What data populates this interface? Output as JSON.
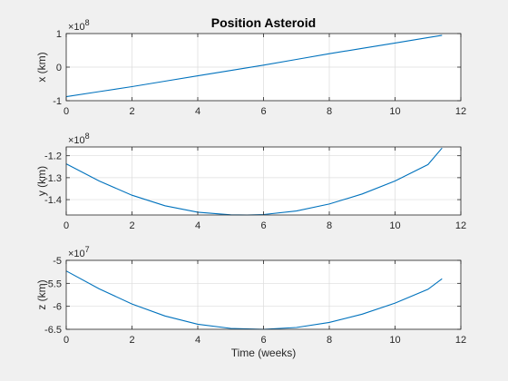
{
  "chart_data": [
    {
      "type": "line",
      "title": "Position Asteroid",
      "xlabel": "",
      "ylabel": "x (km)",
      "y_exponent": "8",
      "xlim": [
        0,
        12
      ],
      "ylim": [
        -1,
        1
      ],
      "xticks": [
        0,
        2,
        4,
        6,
        8,
        10,
        12
      ],
      "yticks": [
        -1,
        0,
        1
      ],
      "grid": true,
      "line_color": "#0072bd",
      "series": [
        {
          "x": [
            0,
            1,
            2,
            3,
            4,
            5,
            6,
            7,
            8,
            9,
            10,
            11,
            11.43
          ],
          "y": [
            -0.88,
            -0.73,
            -0.58,
            -0.42,
            -0.26,
            -0.1,
            0.06,
            0.23,
            0.4,
            0.56,
            0.72,
            0.88,
            0.95
          ]
        }
      ]
    },
    {
      "type": "line",
      "title": "",
      "xlabel": "",
      "ylabel": "y (km)",
      "y_exponent": "8",
      "xlim": [
        0,
        12
      ],
      "ylim": [
        -1.47,
        -1.16
      ],
      "xticks": [
        0,
        2,
        4,
        6,
        8,
        10,
        12
      ],
      "yticks": [
        -1.4,
        -1.3,
        -1.2
      ],
      "ytick_labels": [
        "-1.4",
        "-1.3",
        "-1.2"
      ],
      "grid": true,
      "line_color": "#0072bd",
      "series": [
        {
          "x": [
            0,
            1,
            2,
            3,
            4,
            5,
            5.5,
            6,
            7,
            8,
            9,
            10,
            11,
            11.43
          ],
          "y": [
            -1.237,
            -1.315,
            -1.38,
            -1.428,
            -1.457,
            -1.469,
            -1.47,
            -1.468,
            -1.452,
            -1.42,
            -1.374,
            -1.315,
            -1.24,
            -1.165
          ]
        }
      ]
    },
    {
      "type": "line",
      "title": "",
      "xlabel": "Time (weeks)",
      "ylabel": "z (km)",
      "y_exponent": "7",
      "xlim": [
        0,
        12
      ],
      "ylim": [
        -6.5,
        -5
      ],
      "xticks": [
        0,
        2,
        4,
        6,
        8,
        10,
        12
      ],
      "yticks": [
        -6.5,
        -6,
        -5.5,
        -5
      ],
      "ytick_labels": [
        "-6.5",
        "-6",
        "-5.5",
        "-5"
      ],
      "grid": true,
      "line_color": "#0072bd",
      "series": [
        {
          "x": [
            0,
            1,
            2,
            3,
            4,
            5,
            6,
            7,
            8,
            9,
            10,
            11,
            11.43
          ],
          "y": [
            -5.23,
            -5.62,
            -5.95,
            -6.21,
            -6.39,
            -6.48,
            -6.5,
            -6.46,
            -6.35,
            -6.17,
            -5.93,
            -5.63,
            -5.4
          ]
        }
      ]
    }
  ]
}
